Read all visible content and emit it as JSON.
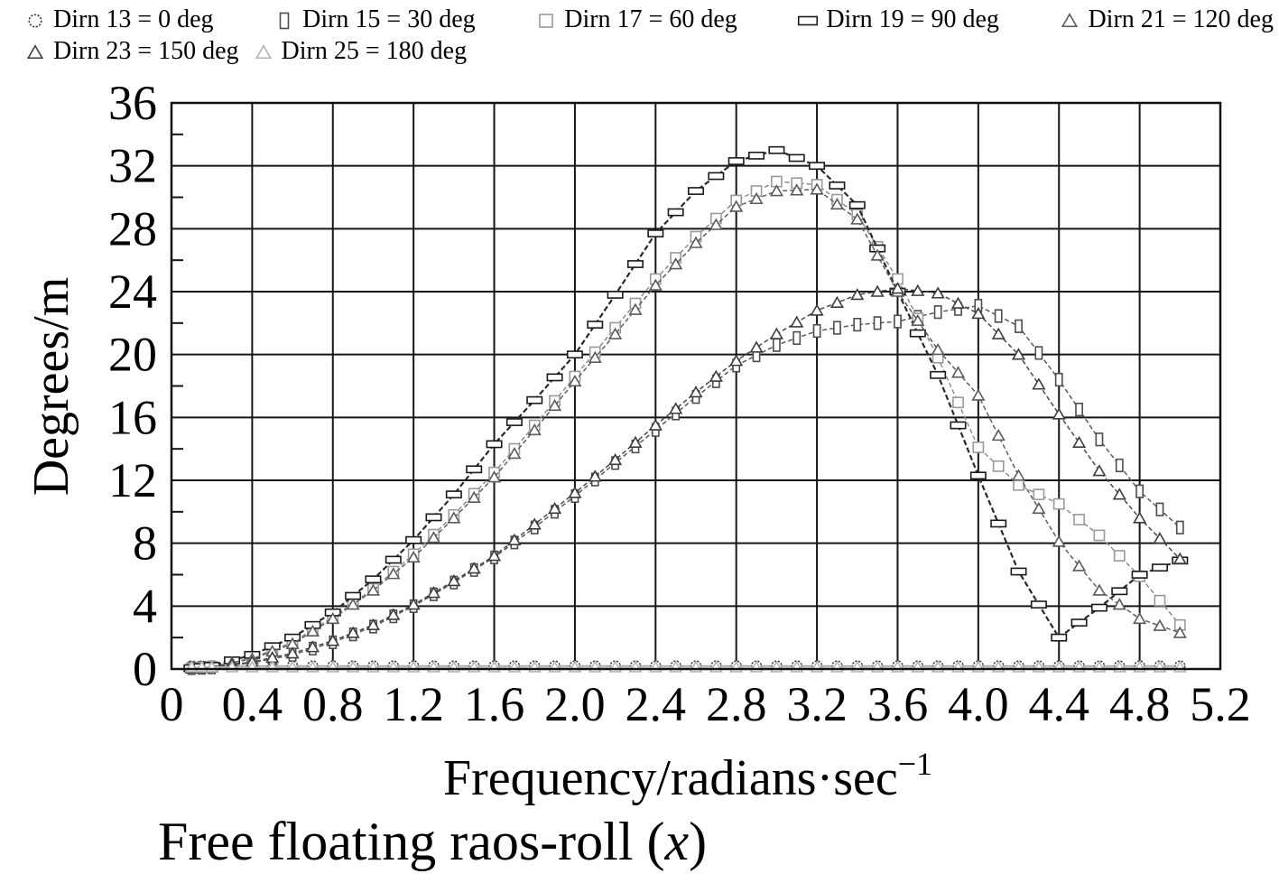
{
  "chart_data": {
    "type": "line",
    "title": {
      "prefix": "Free floating raos-roll (",
      "italic": "x",
      "suffix": ")"
    },
    "xlabel": {
      "main": "Frequency/radians·sec",
      "sup": "−1"
    },
    "ylabel": "Degrees/m",
    "xlim": [
      0,
      5.2
    ],
    "ylim": [
      0,
      36
    ],
    "grid": true,
    "legend_position": "top",
    "x_ticks": [
      0,
      0.4,
      0.8,
      1.2,
      1.6,
      2.0,
      2.4,
      2.8,
      3.2,
      3.6,
      4.0,
      4.4,
      4.8,
      5.2
    ],
    "x_tick_labels": [
      "0",
      "0.4",
      "0.8",
      "1.2",
      "1.6",
      "2.0",
      "2.4",
      "2.8",
      "3.2",
      "3.6",
      "4.0",
      "4.4",
      "4.8",
      "5.2"
    ],
    "y_ticks": [
      0,
      4,
      8,
      12,
      16,
      20,
      24,
      28,
      32,
      36
    ],
    "y_tick_labels": [
      "0",
      "4",
      "8",
      "12",
      "16",
      "20",
      "24",
      "28",
      "32",
      "36"
    ],
    "y_minor_ticks": [
      2,
      6,
      10,
      14,
      18,
      22,
      26,
      30,
      34
    ],
    "x": [
      0.1,
      0.2,
      0.4,
      0.6,
      0.8,
      1.0,
      1.2,
      1.4,
      1.6,
      1.8,
      2.0,
      2.2,
      2.4,
      2.6,
      2.8,
      3.0,
      3.2,
      3.4,
      3.6,
      3.8,
      4.0,
      4.2,
      4.4,
      4.6,
      4.8,
      5.0
    ],
    "legend_rows": [
      [
        0,
        1,
        2,
        3,
        4
      ],
      [
        5,
        6
      ]
    ],
    "series": [
      {
        "id": "dirn-13",
        "label": "Dirn 13 = 0 deg",
        "direction_deg": 0,
        "marker": "circle",
        "color": "#3a3a3a",
        "line_color": "#a8a8a8",
        "dash": "",
        "width": 1.5,
        "values": [
          0.2,
          0.2,
          0.2,
          0.2,
          0.2,
          0.2,
          0.2,
          0.2,
          0.2,
          0.2,
          0.2,
          0.2,
          0.2,
          0.2,
          0.2,
          0.2,
          0.2,
          0.2,
          0.2,
          0.2,
          0.2,
          0.2,
          0.2,
          0.2,
          0.2,
          0.2
        ]
      },
      {
        "id": "dirn-15",
        "label": "Dirn 15 = 30 deg",
        "direction_deg": 30,
        "marker": "vrect",
        "color": "#4d4d4d",
        "line_color": "#5a5a5a",
        "dash": "5 3",
        "width": 1.5,
        "values": [
          0.05,
          0.1,
          0.4,
          0.9,
          1.7,
          2.7,
          4.0,
          5.5,
          7.1,
          9.0,
          11.0,
          13.1,
          15.2,
          17.3,
          19.3,
          20.6,
          21.5,
          21.9,
          22.1,
          22.7,
          23.1,
          21.8,
          18.4,
          14.6,
          11.3,
          9.0
        ]
      },
      {
        "id": "dirn-17",
        "label": "Dirn 17 = 60 deg",
        "direction_deg": 60,
        "marker": "square",
        "color": "#9a9a9a",
        "line_color": "#8c8c8c",
        "dash": "5 3",
        "width": 1.5,
        "values": [
          0.05,
          0.15,
          0.7,
          1.7,
          3.3,
          5.1,
          7.3,
          9.8,
          12.5,
          15.5,
          18.6,
          21.7,
          24.8,
          27.5,
          29.8,
          31.0,
          30.8,
          28.9,
          24.8,
          19.8,
          14.1,
          11.7,
          10.5,
          8.5,
          5.9,
          2.8
        ]
      },
      {
        "id": "dirn-19",
        "label": "Dirn 19 = 90 deg",
        "direction_deg": 90,
        "marker": "hrect",
        "color": "#1a1a1a",
        "line_color": "#2a2a2a",
        "dash": "6 3",
        "width": 2.2,
        "values": [
          0.05,
          0.2,
          0.9,
          2.0,
          3.6,
          5.7,
          8.2,
          11.1,
          14.3,
          17.1,
          20.0,
          23.8,
          27.7,
          30.4,
          32.3,
          33.0,
          32.0,
          29.5,
          24.0,
          18.7,
          12.3,
          6.2,
          2.0,
          3.9,
          6.0,
          6.9
        ]
      },
      {
        "id": "dirn-21",
        "label": "Dirn 21 = 120 deg",
        "direction_deg": 120,
        "marker": "triangle",
        "color": "#5a5a5a",
        "line_color": "#606060",
        "dash": "5 3",
        "width": 1.5,
        "values": [
          0.05,
          0.15,
          0.65,
          1.6,
          3.2,
          5.0,
          7.1,
          9.6,
          12.2,
          15.2,
          18.3,
          21.3,
          24.4,
          27.1,
          29.4,
          30.4,
          30.5,
          28.6,
          24.0,
          20.3,
          17.4,
          12.3,
          8.1,
          5.0,
          3.2,
          2.3
        ]
      },
      {
        "id": "dirn-23",
        "label": "Dirn 23 = 150 deg",
        "direction_deg": 150,
        "marker": "triangle",
        "color": "#3d3d3d",
        "line_color": "#4a4a4a",
        "dash": "5 3",
        "width": 1.5,
        "values": [
          0.05,
          0.1,
          0.45,
          1.0,
          1.8,
          2.8,
          4.1,
          5.6,
          7.2,
          9.2,
          11.2,
          13.3,
          15.5,
          17.6,
          19.6,
          21.3,
          22.8,
          23.8,
          24.2,
          23.9,
          22.6,
          20.0,
          16.2,
          12.6,
          9.6,
          7.0
        ]
      },
      {
        "id": "dirn-25",
        "label": "Dirn 25 = 180 deg",
        "direction_deg": 180,
        "marker": "triangle",
        "color": "#b5b5b5",
        "line_color": "#c2c2c2",
        "dash": "",
        "width": 1.5,
        "values": [
          0.12,
          0.12,
          0.12,
          0.12,
          0.12,
          0.12,
          0.12,
          0.12,
          0.12,
          0.12,
          0.12,
          0.12,
          0.12,
          0.12,
          0.12,
          0.12,
          0.12,
          0.12,
          0.12,
          0.12,
          0.12,
          0.12,
          0.12,
          0.12,
          0.12,
          0.12
        ]
      }
    ]
  }
}
